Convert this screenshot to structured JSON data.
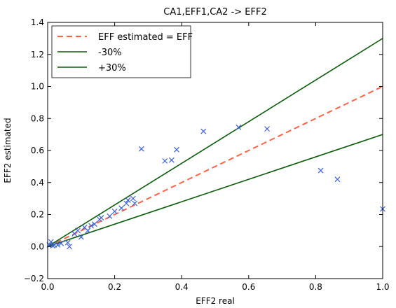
{
  "chart_data": {
    "type": "scatter",
    "title": "CA1,EFF1,CA2 -> EFF2",
    "xlabel": "EFF2 real",
    "ylabel": "EFF2 estimated",
    "xlim": [
      0.0,
      1.0
    ],
    "ylim": [
      -0.2,
      1.4
    ],
    "x_ticks": [
      "0.0",
      "0.2",
      "0.4",
      "0.6",
      "0.8",
      "1.0"
    ],
    "y_ticks": [
      "−0.2",
      "0.0",
      "0.2",
      "0.4",
      "0.6",
      "0.8",
      "1.0",
      "1.2",
      "1.4"
    ],
    "grid": false,
    "legend_position": "top-left",
    "lines": [
      {
        "name": "EFF estimated = EFF",
        "slope": 1.0,
        "color": "#ff6347",
        "style": "dashed"
      },
      {
        "name": "-30%",
        "slope": 0.7,
        "color": "#0a5c0a",
        "style": "solid"
      },
      {
        "name": "+30%",
        "slope": 1.3,
        "color": "#0a5c0a",
        "style": "solid"
      }
    ],
    "points_color": "#3b5fd9",
    "points": [
      {
        "x": 0.005,
        "y": 0.01
      },
      {
        "x": 0.01,
        "y": 0.03
      },
      {
        "x": 0.015,
        "y": 0.005
      },
      {
        "x": 0.02,
        "y": 0.01
      },
      {
        "x": 0.03,
        "y": 0.01
      },
      {
        "x": 0.04,
        "y": 0.02
      },
      {
        "x": 0.06,
        "y": 0.025
      },
      {
        "x": 0.065,
        "y": 0.0
      },
      {
        "x": 0.08,
        "y": 0.08
      },
      {
        "x": 0.09,
        "y": 0.1
      },
      {
        "x": 0.1,
        "y": 0.06
      },
      {
        "x": 0.11,
        "y": 0.12
      },
      {
        "x": 0.12,
        "y": 0.1
      },
      {
        "x": 0.13,
        "y": 0.13
      },
      {
        "x": 0.14,
        "y": 0.14
      },
      {
        "x": 0.155,
        "y": 0.17
      },
      {
        "x": 0.16,
        "y": 0.18
      },
      {
        "x": 0.185,
        "y": 0.19
      },
      {
        "x": 0.2,
        "y": 0.22
      },
      {
        "x": 0.22,
        "y": 0.24
      },
      {
        "x": 0.235,
        "y": 0.27
      },
      {
        "x": 0.24,
        "y": 0.29
      },
      {
        "x": 0.255,
        "y": 0.3
      },
      {
        "x": 0.26,
        "y": 0.27
      },
      {
        "x": 0.28,
        "y": 0.61
      },
      {
        "x": 0.35,
        "y": 0.535
      },
      {
        "x": 0.37,
        "y": 0.54
      },
      {
        "x": 0.385,
        "y": 0.605
      },
      {
        "x": 0.465,
        "y": 0.72
      },
      {
        "x": 0.57,
        "y": 0.745
      },
      {
        "x": 0.655,
        "y": 0.735
      },
      {
        "x": 0.815,
        "y": 0.475
      },
      {
        "x": 0.865,
        "y": 0.42
      },
      {
        "x": 1.0,
        "y": 0.235
      }
    ]
  }
}
